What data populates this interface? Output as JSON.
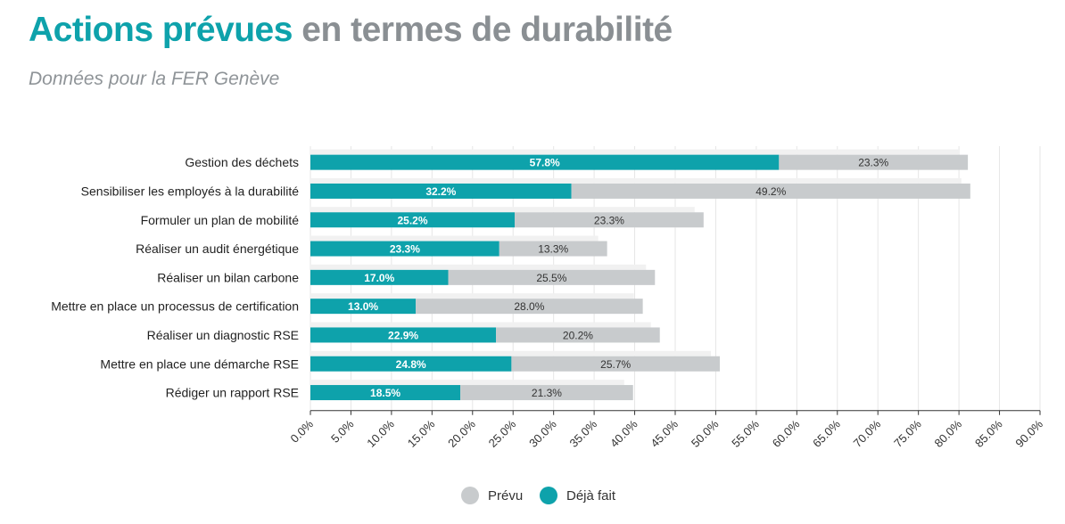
{
  "header": {
    "title_accent": "Actions prévues",
    "title_rest": "en termes de durabilité",
    "subtitle": "Données pour la FER Genève"
  },
  "colors": {
    "done": "#0ea2ab",
    "planned": "#c8cbcd",
    "title_accent": "#0ea2ab",
    "title_rest": "#8a8f93"
  },
  "legend": {
    "planned_label": "Prévu",
    "done_label": "Déjà fait"
  },
  "chart_data": {
    "type": "bar",
    "orientation": "horizontal",
    "stacked": true,
    "categories": [
      "Gestion des déchets",
      "Sensibiliser les employés à la durabilité",
      "Formuler un plan de mobilité",
      "Réaliser un audit énergétique",
      "Réaliser un bilan carbone",
      "Mettre en place un processus de certification",
      "Réaliser un diagnostic RSE",
      "Mettre en place une démarche RSE",
      "Rédiger un rapport RSE"
    ],
    "series": [
      {
        "name": "Déjà fait",
        "values": [
          57.8,
          32.2,
          25.2,
          23.3,
          17.0,
          13.0,
          22.9,
          24.8,
          18.5
        ]
      },
      {
        "name": "Prévu",
        "values": [
          23.3,
          49.2,
          23.3,
          13.3,
          25.5,
          28.0,
          20.2,
          25.7,
          21.3
        ]
      }
    ],
    "xlim": [
      0,
      90
    ],
    "xticks": [
      0,
      5,
      10,
      15,
      20,
      25,
      30,
      35,
      40,
      45,
      50,
      55,
      60,
      65,
      70,
      75,
      80,
      85,
      90
    ],
    "value_format": "percent_1dp",
    "grid": true,
    "legend_position": "bottom"
  }
}
